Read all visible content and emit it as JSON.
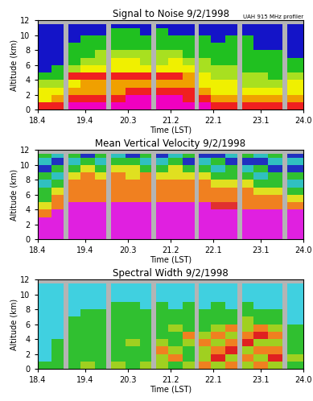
{
  "chart_data": [
    {
      "type": "heatmap",
      "title": "Signal to Noise 9/2/1998",
      "annotation": "UAH 915 MHz profiler",
      "x_label": "Time (LST)",
      "y_label": "Altitude (km)",
      "xlim": [
        18.4,
        24.0
      ],
      "xticks": [
        18.4,
        19.4,
        20.3,
        21.2,
        22.1,
        23.1,
        24.0
      ],
      "ylim": [
        0,
        12
      ],
      "yticks": [
        0,
        2,
        4,
        6,
        8,
        10,
        12
      ],
      "x_edges": [
        18.4,
        18.7,
        18.95,
        19.05,
        19.3,
        19.6,
        19.85,
        19.95,
        20.25,
        20.55,
        20.8,
        20.9,
        21.15,
        21.45,
        21.7,
        21.8,
        22.05,
        22.35,
        22.6,
        22.7,
        22.95,
        23.25,
        23.55,
        23.65,
        24.0
      ],
      "y_edges": [
        0,
        1,
        2,
        3,
        4,
        5,
        6,
        7,
        8,
        9,
        10,
        11,
        11.5
      ],
      "colors": [
        "#1414c8",
        "#20c020",
        "#a8e020",
        "#f0f000",
        "#f0a000",
        "#f02020",
        "#f000c0"
      ],
      "cells_by_time": [
        [
          5,
          3,
          3,
          2,
          1,
          0,
          0,
          0,
          0,
          0,
          0,
          0
        ],
        [
          5,
          4,
          3,
          2,
          1,
          1,
          0,
          0,
          0,
          0,
          0,
          0
        ],
        null,
        [
          6,
          5,
          4,
          3,
          5,
          2,
          1,
          1,
          1,
          0,
          0,
          0
        ],
        [
          6,
          5,
          4,
          4,
          5,
          3,
          2,
          1,
          1,
          1,
          0,
          0
        ],
        [
          6,
          5,
          4,
          4,
          5,
          3,
          2,
          2,
          1,
          1,
          0,
          0
        ],
        null,
        [
          6,
          5,
          4,
          4,
          5,
          3,
          3,
          2,
          1,
          1,
          1,
          0
        ],
        [
          6,
          6,
          5,
          4,
          5,
          3,
          3,
          2,
          1,
          1,
          1,
          0
        ],
        [
          6,
          6,
          5,
          4,
          5,
          3,
          2,
          2,
          1,
          1,
          0,
          0
        ],
        null,
        [
          6,
          6,
          5,
          4,
          5,
          3,
          2,
          2,
          1,
          1,
          1,
          0
        ],
        [
          6,
          6,
          5,
          4,
          5,
          3,
          3,
          2,
          1,
          1,
          0,
          0
        ],
        [
          6,
          5,
          5,
          4,
          4,
          3,
          2,
          1,
          1,
          1,
          0,
          0
        ],
        null,
        [
          6,
          5,
          4,
          3,
          3,
          2,
          2,
          1,
          1,
          1,
          0,
          0
        ],
        [
          5,
          4,
          3,
          3,
          2,
          2,
          1,
          1,
          1,
          0,
          0,
          0
        ],
        [
          5,
          4,
          3,
          3,
          2,
          2,
          1,
          1,
          1,
          1,
          0,
          0
        ],
        null,
        [
          5,
          4,
          3,
          2,
          2,
          1,
          1,
          1,
          1,
          1,
          0,
          0
        ],
        [
          5,
          4,
          3,
          2,
          2,
          1,
          1,
          1,
          0,
          0,
          0,
          0
        ],
        [
          5,
          4,
          3,
          2,
          1,
          1,
          1,
          1,
          0,
          0,
          0,
          0
        ],
        null,
        [
          5,
          4,
          3,
          3,
          2,
          1,
          1,
          0,
          0,
          0,
          0,
          0
        ]
      ]
    },
    {
      "type": "heatmap",
      "title": "Mean Vertical Velocity 9/2/1998",
      "x_label": "Time (LST)",
      "y_label": "Altitude (km)",
      "xlim": [
        18.4,
        24.0
      ],
      "xticks": [
        18.4,
        19.4,
        20.3,
        21.2,
        22.1,
        23.1,
        24.0
      ],
      "ylim": [
        0,
        12
      ],
      "yticks": [
        0,
        2,
        4,
        6,
        8,
        10,
        12
      ],
      "x_edges": [
        18.4,
        18.7,
        18.95,
        19.05,
        19.3,
        19.6,
        19.85,
        19.95,
        20.25,
        20.55,
        20.8,
        20.9,
        21.15,
        21.45,
        21.7,
        21.8,
        22.05,
        22.35,
        22.6,
        22.7,
        22.95,
        23.25,
        23.55,
        23.65,
        24.0
      ],
      "y_edges": [
        0,
        1,
        2,
        3,
        4,
        5,
        6,
        7,
        8,
        9,
        10,
        11,
        11.5
      ],
      "colors": [
        "#e020e0",
        "#e03030",
        "#f08020",
        "#e0e020",
        "#30c030",
        "#30c0c0",
        "#2030c0"
      ],
      "cells_by_time": [
        [
          0,
          0,
          0,
          2,
          3,
          4,
          4,
          5,
          4,
          6,
          5,
          4
        ],
        [
          0,
          0,
          0,
          0,
          2,
          2,
          3,
          4,
          5,
          4,
          6,
          5
        ],
        null,
        [
          0,
          0,
          0,
          0,
          0,
          2,
          2,
          2,
          3,
          4,
          5,
          4
        ],
        [
          0,
          0,
          0,
          0,
          0,
          2,
          2,
          2,
          2,
          3,
          4,
          6
        ],
        [
          0,
          0,
          0,
          0,
          0,
          2,
          2,
          2,
          3,
          4,
          5,
          4
        ],
        null,
        [
          0,
          0,
          0,
          0,
          0,
          2,
          2,
          2,
          2,
          3,
          4,
          5
        ],
        [
          0,
          0,
          0,
          0,
          0,
          2,
          2,
          2,
          3,
          3,
          4,
          6
        ],
        [
          0,
          0,
          0,
          0,
          0,
          2,
          2,
          2,
          2,
          4,
          5,
          4
        ],
        null,
        [
          0,
          0,
          0,
          0,
          0,
          2,
          2,
          2,
          3,
          4,
          5,
          6
        ],
        [
          0,
          0,
          0,
          0,
          0,
          2,
          2,
          2,
          3,
          3,
          4,
          5
        ],
        [
          0,
          0,
          0,
          0,
          0,
          2,
          2,
          2,
          3,
          4,
          6,
          4
        ],
        null,
        [
          0,
          0,
          0,
          0,
          0,
          2,
          2,
          2,
          3,
          4,
          5,
          6
        ],
        [
          0,
          0,
          0,
          0,
          1,
          2,
          2,
          3,
          4,
          5,
          4,
          6
        ],
        [
          0,
          0,
          0,
          0,
          1,
          2,
          2,
          3,
          4,
          4,
          6,
          5
        ],
        null,
        [
          0,
          0,
          0,
          0,
          2,
          2,
          2,
          3,
          4,
          5,
          6,
          4
        ],
        [
          0,
          0,
          0,
          0,
          2,
          2,
          3,
          4,
          5,
          4,
          6,
          5
        ],
        [
          0,
          0,
          0,
          0,
          2,
          2,
          3,
          4,
          4,
          6,
          5,
          4
        ],
        null,
        [
          0,
          0,
          0,
          0,
          2,
          3,
          4,
          5,
          4,
          6,
          5,
          6
        ]
      ]
    },
    {
      "type": "heatmap",
      "title": "Spectral Width 9/2/1998",
      "x_label": "Time (LST)",
      "y_label": "Altitude (km)",
      "xlim": [
        18.4,
        24.0
      ],
      "xticks": [
        18.4,
        19.4,
        20.3,
        21.2,
        22.1,
        23.1,
        24.0
      ],
      "ylim": [
        0,
        12
      ],
      "yticks": [
        0,
        2,
        4,
        6,
        8,
        10,
        12
      ],
      "x_edges": [
        18.4,
        18.7,
        18.95,
        19.05,
        19.3,
        19.6,
        19.85,
        19.95,
        20.25,
        20.55,
        20.8,
        20.9,
        21.15,
        21.45,
        21.7,
        21.8,
        22.05,
        22.35,
        22.6,
        22.7,
        22.95,
        23.25,
        23.55,
        23.65,
        24.0
      ],
      "y_edges": [
        0,
        1,
        2,
        3,
        4,
        5,
        6,
        7,
        8,
        9,
        10,
        11,
        11.5
      ],
      "colors": [
        "#2020a0",
        "#40d0e0",
        "#30c030",
        "#a0d020",
        "#f08020",
        "#e02020"
      ],
      "cells_by_time": [
        [
          2,
          1,
          1,
          1,
          1,
          1,
          1,
          1,
          1,
          1,
          1,
          1
        ],
        [
          2,
          2,
          2,
          2,
          1,
          1,
          1,
          1,
          1,
          1,
          1,
          1
        ],
        null,
        [
          2,
          2,
          2,
          2,
          2,
          2,
          2,
          1,
          1,
          1,
          1,
          1
        ],
        [
          3,
          2,
          2,
          2,
          2,
          2,
          2,
          2,
          1,
          1,
          1,
          1
        ],
        [
          2,
          2,
          2,
          2,
          2,
          2,
          2,
          2,
          1,
          1,
          1,
          1
        ],
        null,
        [
          3,
          2,
          2,
          2,
          2,
          2,
          2,
          2,
          2,
          1,
          1,
          1
        ],
        [
          2,
          2,
          2,
          3,
          2,
          2,
          2,
          2,
          2,
          1,
          1,
          1
        ],
        [
          3,
          2,
          2,
          2,
          2,
          2,
          2,
          2,
          1,
          1,
          1,
          1
        ],
        null,
        [
          3,
          3,
          4,
          3,
          2,
          2,
          2,
          2,
          2,
          1,
          1,
          1
        ],
        [
          2,
          4,
          3,
          2,
          2,
          3,
          2,
          2,
          1,
          1,
          1,
          1
        ],
        [
          3,
          2,
          2,
          3,
          4,
          2,
          2,
          2,
          2,
          1,
          1,
          1
        ],
        null,
        [
          4,
          3,
          3,
          4,
          3,
          2,
          2,
          2,
          1,
          1,
          1,
          1
        ],
        [
          3,
          5,
          4,
          3,
          4,
          3,
          2,
          2,
          2,
          1,
          1,
          1
        ],
        [
          4,
          3,
          5,
          4,
          3,
          4,
          2,
          2,
          1,
          1,
          1,
          1
        ],
        null,
        [
          3,
          4,
          3,
          5,
          4,
          3,
          3,
          2,
          2,
          1,
          1,
          1
        ],
        [
          4,
          3,
          4,
          3,
          5,
          4,
          2,
          2,
          1,
          1,
          1,
          1
        ],
        [
          3,
          5,
          4,
          3,
          4,
          3,
          2,
          2,
          1,
          1,
          1,
          1
        ],
        null,
        [
          2,
          3,
          2,
          2,
          2,
          2,
          1,
          1,
          1,
          1,
          1,
          1
        ]
      ]
    }
  ]
}
